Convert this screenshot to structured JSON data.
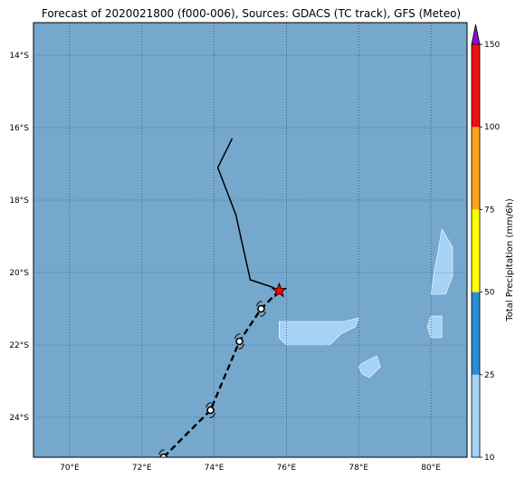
{
  "title": "Forecast of 2020021800 (f000-006), Sources: GDACS (TC track), GFS (Meteo)",
  "map": {
    "lat_range": [
      -25.1,
      -13.1
    ],
    "lon_range": [
      69.0,
      81.0
    ],
    "lat_ticks": [
      {
        "value": -14,
        "label": "14°S"
      },
      {
        "value": -16,
        "label": "16°S"
      },
      {
        "value": -18,
        "label": "18°S"
      },
      {
        "value": -20,
        "label": "20°S"
      },
      {
        "value": -22,
        "label": "22°S"
      },
      {
        "value": -24,
        "label": "24°S"
      }
    ],
    "lon_ticks": [
      {
        "value": 70,
        "label": "70°E"
      },
      {
        "value": 72,
        "label": "72°E"
      },
      {
        "value": 74,
        "label": "74°E"
      },
      {
        "value": 76,
        "label": "76°E"
      },
      {
        "value": 78,
        "label": "78°E"
      },
      {
        "value": 80,
        "label": "80°E"
      }
    ],
    "ocean_color": "#76a7cd",
    "grid": "dotted",
    "past_track": [
      [
        74.5,
        -16.3
      ],
      [
        74.1,
        -17.1
      ],
      [
        74.6,
        -18.4
      ],
      [
        75.0,
        -20.2
      ],
      [
        75.3,
        -20.3
      ],
      [
        75.6,
        -20.4
      ],
      [
        75.8,
        -20.5
      ]
    ],
    "current_position": {
      "lon": 75.8,
      "lat": -20.5,
      "marker": "red-star"
    },
    "forecast_track": [
      [
        75.8,
        -20.5
      ],
      [
        75.3,
        -21.0
      ],
      [
        74.7,
        -21.9
      ],
      [
        73.9,
        -23.8
      ],
      [
        73.3,
        -24.4
      ],
      [
        72.6,
        -25.1
      ]
    ],
    "forecast_points": [
      [
        75.3,
        -21.0
      ],
      [
        74.7,
        -21.9
      ],
      [
        73.9,
        -23.8
      ],
      [
        72.6,
        -25.1
      ]
    ],
    "precip_patches": [
      {
        "name": "patch-east",
        "points": [
          [
            80.3,
            -18.8
          ],
          [
            80.6,
            -19.3
          ],
          [
            80.6,
            -20.1
          ],
          [
            80.4,
            -20.6
          ],
          [
            80.0,
            -20.6
          ],
          [
            80.1,
            -19.9
          ],
          [
            80.2,
            -19.4
          ]
        ]
      },
      {
        "name": "patch-east-small",
        "points": [
          [
            80.0,
            -21.2
          ],
          [
            80.3,
            -21.2
          ],
          [
            80.3,
            -21.8
          ],
          [
            80.0,
            -21.8
          ],
          [
            79.9,
            -21.5
          ]
        ]
      },
      {
        "name": "patch-central",
        "points": [
          [
            75.8,
            -21.35
          ],
          [
            77.6,
            -21.35
          ],
          [
            78.0,
            -21.25
          ],
          [
            77.9,
            -21.5
          ],
          [
            77.5,
            -21.7
          ],
          [
            77.2,
            -22.0
          ],
          [
            76.0,
            -22.0
          ],
          [
            75.8,
            -21.8
          ]
        ]
      },
      {
        "name": "patch-south",
        "points": [
          [
            78.1,
            -22.5
          ],
          [
            78.5,
            -22.3
          ],
          [
            78.6,
            -22.6
          ],
          [
            78.3,
            -22.9
          ],
          [
            78.1,
            -22.8
          ],
          [
            78.0,
            -22.6
          ]
        ]
      }
    ]
  },
  "colorbar": {
    "label": "Total Precipitation (mm/6h)",
    "ticks": [
      "10",
      "25",
      "50",
      "75",
      "100",
      "150"
    ],
    "colors": [
      "#a6d2f5",
      "#2a8ed6",
      "#ffff00",
      "#ffa31a",
      "#ee1111"
    ],
    "extend_color": "#8b10d0"
  }
}
